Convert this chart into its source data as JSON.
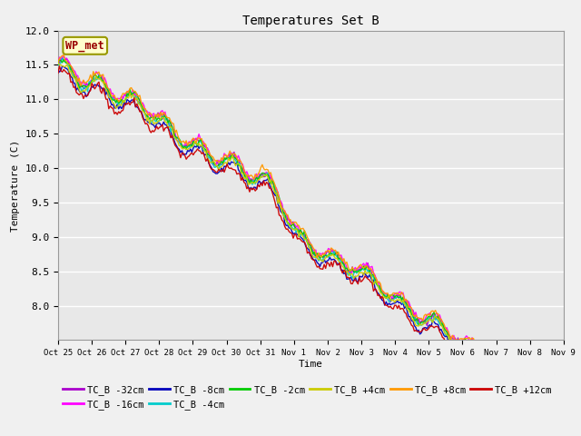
{
  "title": "Temperatures Set B",
  "xlabel": "Time",
  "ylabel": "Temperature (C)",
  "ylim": [
    7.5,
    12.0
  ],
  "yticks": [
    8.0,
    8.5,
    9.0,
    9.5,
    10.0,
    10.5,
    11.0,
    11.5,
    12.0
  ],
  "wp_met_label": "WP_met",
  "series_labels": [
    "TC_B -32cm",
    "TC_B -16cm",
    "TC_B -8cm",
    "TC_B -4cm",
    "TC_B -2cm",
    "TC_B +4cm",
    "TC_B +8cm",
    "TC_B +12cm"
  ],
  "series_colors": [
    "#aa00cc",
    "#ff00ff",
    "#0000bb",
    "#00cccc",
    "#00cc00",
    "#cccc00",
    "#ff9900",
    "#cc0000"
  ],
  "xtick_labels": [
    "Oct 25",
    "Oct 26",
    "Oct 27",
    "Oct 28",
    "Oct 29",
    "Oct 30",
    "Oct 31",
    "Nov 1",
    "Nov 2",
    "Nov 3",
    "Nov 4",
    "Nov 5",
    "Nov 6",
    "Nov 7",
    "Nov 8",
    "Nov 9"
  ],
  "fig_bg_color": "#f0f0f0",
  "plot_bg_color": "#e8e8e8",
  "line_width": 1.0,
  "n_points": 360,
  "seed": 42
}
